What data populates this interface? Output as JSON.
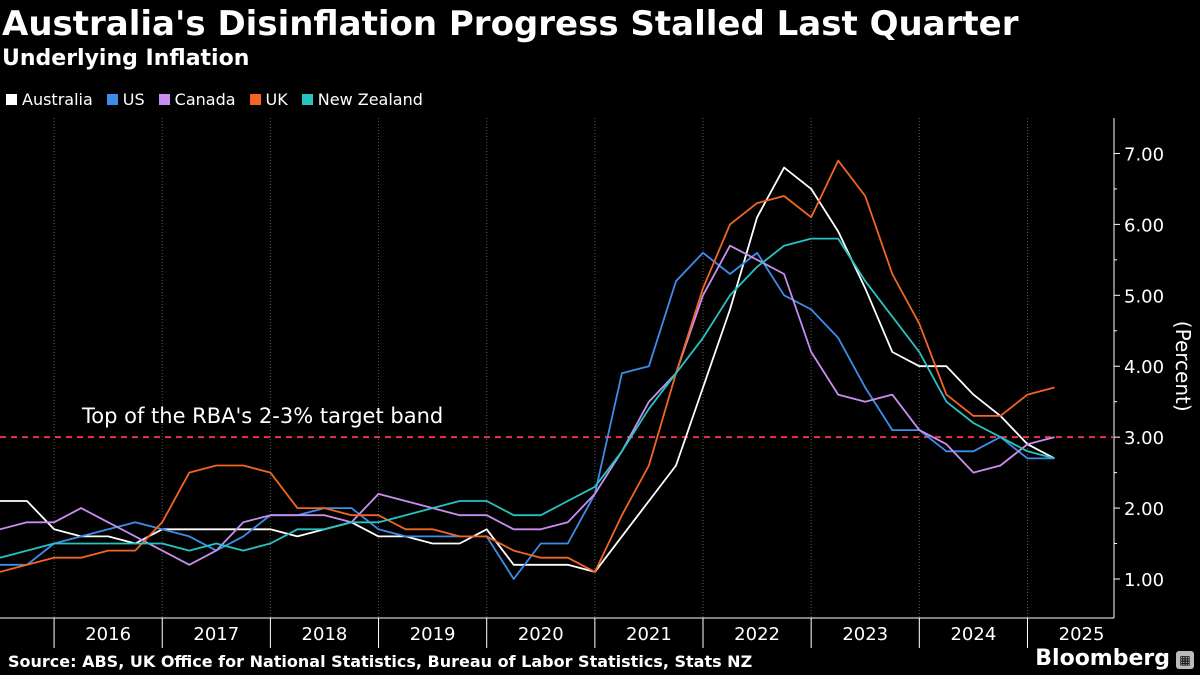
{
  "header": {
    "title": "Australia's Disinflation Progress Stalled Last Quarter",
    "subtitle": "Underlying Inflation"
  },
  "footer": {
    "source": "Source: ABS, UK Office for National Statistics, Bureau of Labor Statistics, Stats NZ",
    "brand": "Bloomberg"
  },
  "colors": {
    "background": "#000000",
    "reference_line": "#e8334a",
    "grid": "#555555"
  },
  "chart_data": {
    "type": "line",
    "title": "Australia's Disinflation Progress Stalled Last Quarter",
    "subtitle": "Underlying Inflation",
    "xlabel": "",
    "ylabel": "(Percent)",
    "ylim": [
      0.45,
      7.5
    ],
    "xlim": [
      2015.5,
      2025.8
    ],
    "yticks": [
      1,
      2,
      3,
      4,
      5,
      6,
      7
    ],
    "ytick_labels": [
      "1.00",
      "2.00",
      "3.00",
      "4.00",
      "5.00",
      "6.00",
      "7.00"
    ],
    "xticks": [
      2016,
      2017,
      2018,
      2019,
      2020,
      2021,
      2022,
      2023,
      2024,
      2025
    ],
    "xtick_labels": [
      "2016",
      "2017",
      "2018",
      "2019",
      "2020",
      "2021",
      "2022",
      "2023",
      "2024",
      "2025"
    ],
    "grid": "vertical",
    "reference_line": {
      "y": 3.0,
      "label": "Top of the RBA's 2-3% target band"
    },
    "series": [
      {
        "name": "Australia",
        "color": "#ffffff",
        "x": [
          2015.5,
          2015.75,
          2016.0,
          2016.25,
          2016.5,
          2016.75,
          2017.0,
          2017.25,
          2017.5,
          2017.75,
          2018.0,
          2018.25,
          2018.5,
          2018.75,
          2019.0,
          2019.25,
          2019.5,
          2019.75,
          2020.0,
          2020.25,
          2020.5,
          2020.75,
          2021.0,
          2021.25,
          2021.5,
          2021.75,
          2022.0,
          2022.25,
          2022.5,
          2022.75,
          2023.0,
          2023.25,
          2023.5,
          2023.75,
          2024.0,
          2024.25,
          2024.5,
          2024.75,
          2025.0,
          2025.25
        ],
        "y": [
          2.1,
          2.1,
          1.7,
          1.6,
          1.6,
          1.5,
          1.7,
          1.7,
          1.7,
          1.7,
          1.7,
          1.6,
          1.7,
          1.8,
          1.6,
          1.6,
          1.5,
          1.5,
          1.7,
          1.2,
          1.2,
          1.2,
          1.1,
          1.6,
          2.1,
          2.6,
          3.7,
          4.8,
          6.1,
          6.8,
          6.5,
          5.9,
          5.1,
          4.2,
          4.0,
          4.0,
          3.6,
          3.3,
          2.9,
          2.7
        ]
      },
      {
        "name": "US",
        "color": "#3d8ee8",
        "x": [
          2015.5,
          2015.75,
          2016.0,
          2016.25,
          2016.5,
          2016.75,
          2017.0,
          2017.25,
          2017.5,
          2017.75,
          2018.0,
          2018.25,
          2018.5,
          2018.75,
          2019.0,
          2019.25,
          2019.5,
          2019.75,
          2020.0,
          2020.25,
          2020.5,
          2020.75,
          2021.0,
          2021.25,
          2021.5,
          2021.75,
          2022.0,
          2022.25,
          2022.5,
          2022.75,
          2023.0,
          2023.25,
          2023.5,
          2023.75,
          2024.0,
          2024.25,
          2024.5,
          2024.75,
          2025.0,
          2025.25
        ],
        "y": [
          1.2,
          1.2,
          1.5,
          1.6,
          1.7,
          1.8,
          1.7,
          1.6,
          1.4,
          1.6,
          1.9,
          1.9,
          2.0,
          2.0,
          1.7,
          1.6,
          1.6,
          1.6,
          1.6,
          1.0,
          1.5,
          1.5,
          2.2,
          3.9,
          4.0,
          5.2,
          5.6,
          5.3,
          5.6,
          5.0,
          4.8,
          4.4,
          3.7,
          3.1,
          3.1,
          2.8,
          2.8,
          3.0,
          2.7,
          2.7
        ]
      },
      {
        "name": "Canada",
        "color": "#c98ef0",
        "x": [
          2015.5,
          2015.75,
          2016.0,
          2016.25,
          2016.5,
          2016.75,
          2017.0,
          2017.25,
          2017.5,
          2017.75,
          2018.0,
          2018.25,
          2018.5,
          2018.75,
          2019.0,
          2019.25,
          2019.5,
          2019.75,
          2020.0,
          2020.25,
          2020.5,
          2020.75,
          2021.0,
          2021.25,
          2021.5,
          2021.75,
          2022.0,
          2022.25,
          2022.5,
          2022.75,
          2023.0,
          2023.25,
          2023.5,
          2023.75,
          2024.0,
          2024.25,
          2024.5,
          2024.75,
          2025.0,
          2025.25
        ],
        "y": [
          1.7,
          1.8,
          1.8,
          2.0,
          1.8,
          1.6,
          1.4,
          1.2,
          1.4,
          1.8,
          1.9,
          1.9,
          1.9,
          1.8,
          2.2,
          2.1,
          2.0,
          1.9,
          1.9,
          1.7,
          1.7,
          1.8,
          2.2,
          2.8,
          3.5,
          3.9,
          5.0,
          5.7,
          5.5,
          5.3,
          4.2,
          3.6,
          3.5,
          3.6,
          3.1,
          2.9,
          2.5,
          2.6,
          2.9,
          3.0
        ]
      },
      {
        "name": "UK",
        "color": "#f26522",
        "x": [
          2015.5,
          2015.75,
          2016.0,
          2016.25,
          2016.5,
          2016.75,
          2017.0,
          2017.25,
          2017.5,
          2017.75,
          2018.0,
          2018.25,
          2018.5,
          2018.75,
          2019.0,
          2019.25,
          2019.5,
          2019.75,
          2020.0,
          2020.25,
          2020.5,
          2020.75,
          2021.0,
          2021.25,
          2021.5,
          2021.75,
          2022.0,
          2022.25,
          2022.5,
          2022.75,
          2023.0,
          2023.25,
          2023.5,
          2023.75,
          2024.0,
          2024.25,
          2024.5,
          2024.75,
          2025.0,
          2025.25
        ],
        "y": [
          1.1,
          1.2,
          1.3,
          1.3,
          1.4,
          1.4,
          1.8,
          2.5,
          2.6,
          2.6,
          2.5,
          2.0,
          2.0,
          1.9,
          1.9,
          1.7,
          1.7,
          1.6,
          1.6,
          1.4,
          1.3,
          1.3,
          1.1,
          1.9,
          2.6,
          3.9,
          5.1,
          6.0,
          6.3,
          6.4,
          6.1,
          6.9,
          6.4,
          5.3,
          4.6,
          3.6,
          3.3,
          3.3,
          3.6,
          3.7
        ]
      },
      {
        "name": "New Zealand",
        "color": "#29c2c2",
        "x": [
          2015.5,
          2015.75,
          2016.0,
          2016.25,
          2016.5,
          2016.75,
          2017.0,
          2017.25,
          2017.5,
          2017.75,
          2018.0,
          2018.25,
          2018.5,
          2018.75,
          2019.0,
          2019.25,
          2019.5,
          2019.75,
          2020.0,
          2020.25,
          2020.5,
          2020.75,
          2021.0,
          2021.25,
          2021.5,
          2021.75,
          2022.0,
          2022.25,
          2022.5,
          2022.75,
          2023.0,
          2023.25,
          2023.5,
          2023.75,
          2024.0,
          2024.25,
          2024.5,
          2024.75,
          2025.0,
          2025.25
        ],
        "y": [
          1.3,
          1.4,
          1.5,
          1.5,
          1.5,
          1.5,
          1.5,
          1.4,
          1.5,
          1.4,
          1.5,
          1.7,
          1.7,
          1.8,
          1.8,
          1.9,
          2.0,
          2.1,
          2.1,
          1.9,
          1.9,
          2.1,
          2.3,
          2.8,
          3.4,
          3.9,
          4.4,
          5.0,
          5.4,
          5.7,
          5.8,
          5.8,
          5.2,
          4.7,
          4.2,
          3.5,
          3.2,
          3.0,
          2.8,
          2.7
        ]
      }
    ]
  }
}
